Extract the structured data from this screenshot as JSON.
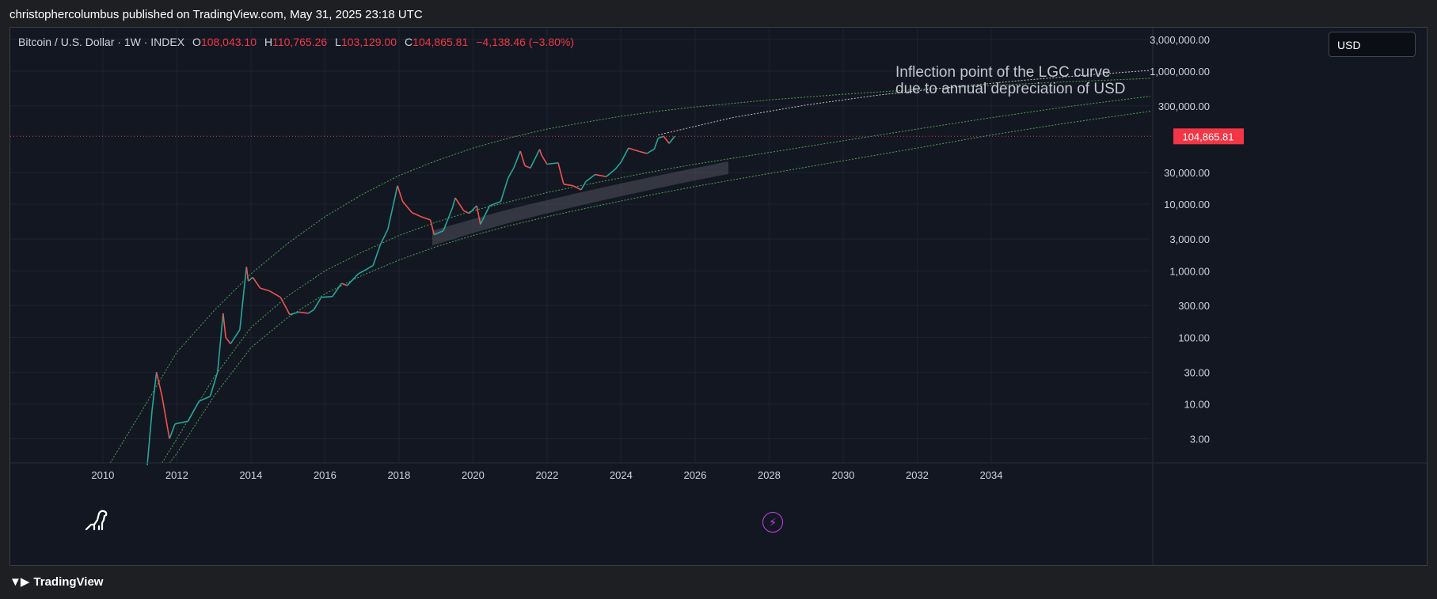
{
  "header": {
    "text": "christophercolumbus published on TradingView.com, May 31, 2025 23:18 UTC"
  },
  "legend": {
    "symbol": "Bitcoin / U.S. Dollar · 1W · INDEX",
    "open_label": "O",
    "open": "108,043.10",
    "high_label": "H",
    "high": "110,765.26",
    "low_label": "L",
    "low": "103,129.00",
    "close_label": "C",
    "close": "104,865.81",
    "change": "−4,138.46 (−3.80%)"
  },
  "currency": "USD",
  "annotation": {
    "line1": "Inflection point of the LGC curve",
    "line2": "due to annual depreciation of USD"
  },
  "footer": {
    "brand": "TradingView"
  },
  "colors": {
    "up": "#26a69a",
    "down": "#ef5350",
    "curve": "#4caf50",
    "price_line": "#f23645",
    "background": "#131722",
    "band": "#5d606b"
  },
  "icons": [
    "dino-icon",
    "lightning-icon",
    "tradingview-logo-icon"
  ],
  "chart_data": {
    "type": "line",
    "title": "",
    "xlabel": "",
    "ylabel": "",
    "y_scale": "log",
    "xlim": [
      2007.5,
      2038.3
    ],
    "ylim": [
      1.3,
      4500000
    ],
    "x_ticks": [
      2010,
      2012,
      2014,
      2016,
      2018,
      2020,
      2022,
      2024,
      2026,
      2028,
      2030,
      2032,
      2034
    ],
    "y_ticks": [
      {
        "value": 3,
        "label": "3.00"
      },
      {
        "value": 10,
        "label": "10.00"
      },
      {
        "value": 30,
        "label": "30.00"
      },
      {
        "value": 100,
        "label": "100.00"
      },
      {
        "value": 300,
        "label": "300.00"
      },
      {
        "value": 1000,
        "label": "1,000.00"
      },
      {
        "value": 3000,
        "label": "3,000.00"
      },
      {
        "value": 10000,
        "label": "10,000.00"
      },
      {
        "value": 30000,
        "label": "30,000.00"
      },
      {
        "value": 300000,
        "label": "300,000.00"
      },
      {
        "value": 1000000,
        "label": "1,000,000.00"
      },
      {
        "value": 3000000,
        "label": "3,000,000.00"
      }
    ],
    "grid": true,
    "last_price": {
      "value": 104865.81,
      "label": "104,865.81"
    },
    "series": [
      {
        "kind": "price",
        "x": [
          2011.2,
          2011.33,
          2011.45,
          2011.6,
          2011.8,
          2011.95,
          2012.3,
          2012.6,
          2012.9,
          2013.1,
          2013.25,
          2013.32,
          2013.45,
          2013.7,
          2013.88,
          2013.93,
          2014.05,
          2014.25,
          2014.5,
          2014.8,
          2015.05,
          2015.3,
          2015.55,
          2015.7,
          2015.9,
          2016.2,
          2016.45,
          2016.6,
          2016.9,
          2017.05,
          2017.3,
          2017.5,
          2017.7,
          2017.85,
          2017.96,
          2018.1,
          2018.35,
          2018.6,
          2018.85,
          2018.95,
          2019.2,
          2019.45,
          2019.52,
          2019.75,
          2019.9,
          2020.1,
          2020.2,
          2020.45,
          2020.75,
          2020.95,
          2021.1,
          2021.28,
          2021.4,
          2021.55,
          2021.8,
          2021.85,
          2022.0,
          2022.3,
          2022.45,
          2022.7,
          2022.92,
          2023.05,
          2023.3,
          2023.6,
          2023.85,
          2024.0,
          2024.2,
          2024.5,
          2024.7,
          2024.9,
          2025.0,
          2025.15,
          2025.3,
          2025.45
        ],
        "y": [
          1.2,
          8,
          30,
          13,
          3,
          5,
          5.5,
          11,
          13,
          30,
          230,
          100,
          80,
          130,
          1150,
          700,
          800,
          550,
          500,
          400,
          220,
          240,
          230,
          260,
          400,
          410,
          650,
          600,
          900,
          1000,
          1200,
          2500,
          4200,
          10000,
          19000,
          11000,
          7500,
          6500,
          5800,
          3500,
          4000,
          9000,
          12500,
          8000,
          7300,
          9500,
          5000,
          9500,
          11000,
          25000,
          35000,
          63000,
          38000,
          35000,
          67000,
          55000,
          40000,
          42000,
          20000,
          19000,
          16500,
          22000,
          28000,
          26000,
          34000,
          43000,
          70000,
          62000,
          58000,
          68000,
          98000,
          105000,
          82000,
          105000
        ]
      },
      {
        "kind": "upper-curve",
        "x": [
          2010.2,
          2011.0,
          2012.0,
          2013.0,
          2014.0,
          2015.0,
          2016.0,
          2017.0,
          2018.0,
          2019.0,
          2020.0,
          2021.0,
          2022.0,
          2023.0,
          2024.0,
          2025.0,
          2026.0,
          2028.0,
          2030.0,
          2032.0,
          2034.0,
          2036.0,
          2038.3
        ],
        "y": [
          1.3,
          7,
          60,
          250,
          900,
          2600,
          6500,
          14000,
          27000,
          45000,
          70000,
          100000,
          135000,
          170000,
          210000,
          250000,
          290000,
          370000,
          450000,
          530000,
          610000,
          690000,
          780000
        ]
      },
      {
        "kind": "middle-curve",
        "x": [
          2011.6,
          2012.0,
          2013.0,
          2014.0,
          2015.0,
          2016.0,
          2017.0,
          2018.0,
          2019.0,
          2020.0,
          2021.0,
          2022.0,
          2023.0,
          2024.0,
          2025.0,
          2026.0,
          2028.0,
          2030.0,
          2032.0,
          2034.0,
          2036.0,
          2038.3
        ],
        "y": [
          1.3,
          3,
          25,
          140,
          420,
          1000,
          1900,
          3400,
          5400,
          8000,
          11000,
          15000,
          19500,
          25000,
          32000,
          40000,
          60000,
          90000,
          135000,
          200000,
          290000,
          420000
        ]
      },
      {
        "kind": "lower-curve",
        "x": [
          2011.8,
          2012.0,
          2013.0,
          2014.0,
          2015.0,
          2016.0,
          2017.0,
          2018.0,
          2019.0,
          2020.0,
          2021.0,
          2022.0,
          2023.0,
          2024.0,
          2025.0,
          2026.0,
          2028.0,
          2030.0,
          2032.0,
          2034.0,
          2036.0,
          2038.3
        ],
        "y": [
          1.3,
          1.8,
          13,
          70,
          200,
          450,
          850,
          1450,
          2300,
          3400,
          4800,
          6500,
          8600,
          11200,
          14500,
          18500,
          29000,
          45000,
          70000,
          110000,
          165000,
          250000
        ]
      },
      {
        "kind": "projection",
        "x": [
          2025.0,
          2027.0,
          2029.0,
          2031.0,
          2033.0,
          2035.0,
          2037.0,
          2038.3
        ],
        "y": [
          110000,
          200000,
          310000,
          440000,
          580000,
          740000,
          910000,
          1030000
        ]
      },
      {
        "kind": "band",
        "x": [
          2018.9,
          2020.0,
          2021.0,
          2022.0,
          2023.0,
          2024.0,
          2025.0,
          2026.0,
          2026.9
        ],
        "y_low": [
          2400,
          3700,
          5300,
          7300,
          9900,
          13200,
          17500,
          22800,
          28500
        ],
        "y_high": [
          4000,
          6000,
          8500,
          11500,
          15500,
          20500,
          27000,
          35000,
          44000
        ]
      }
    ]
  }
}
